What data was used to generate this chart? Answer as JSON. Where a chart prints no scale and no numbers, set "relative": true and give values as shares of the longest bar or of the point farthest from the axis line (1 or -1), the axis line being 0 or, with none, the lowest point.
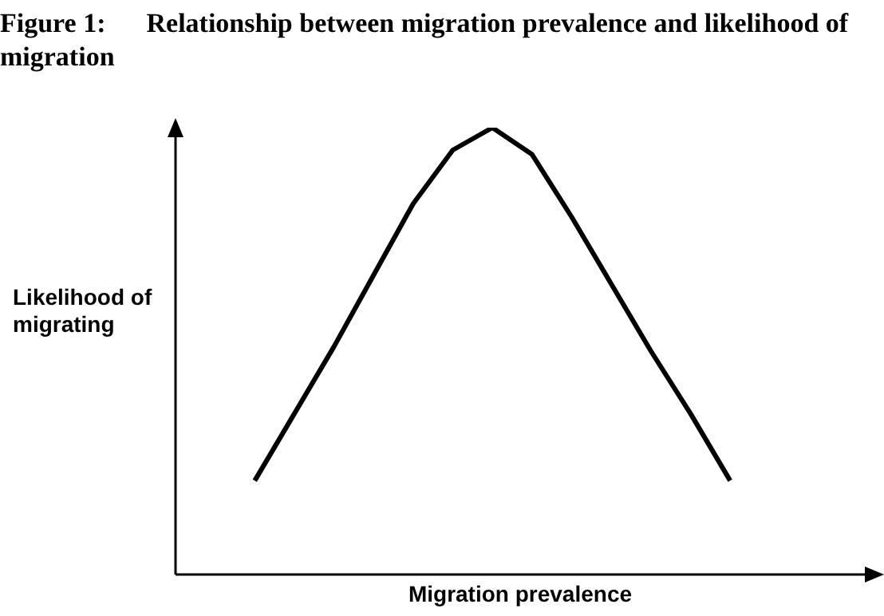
{
  "chart_data": {
    "type": "line",
    "title": "Figure 1:      Relationship between migration prevalence and likelihood of migration",
    "xlabel": "Migration prevalence",
    "ylabel": "Likelihood of migrating",
    "relative": true,
    "color": "#000000",
    "categories": [
      null,
      null,
      null,
      null,
      null,
      null,
      null,
      null,
      null,
      null,
      null,
      null,
      null,
      null,
      null,
      null,
      null,
      null
    ],
    "values": [
      null,
      null,
      0.21,
      0.36,
      0.51,
      0.67,
      0.83,
      0.95,
      1,
      0.94,
      0.8,
      0.65,
      0.5,
      0.36,
      0.21,
      null,
      null,
      null
    ]
  }
}
